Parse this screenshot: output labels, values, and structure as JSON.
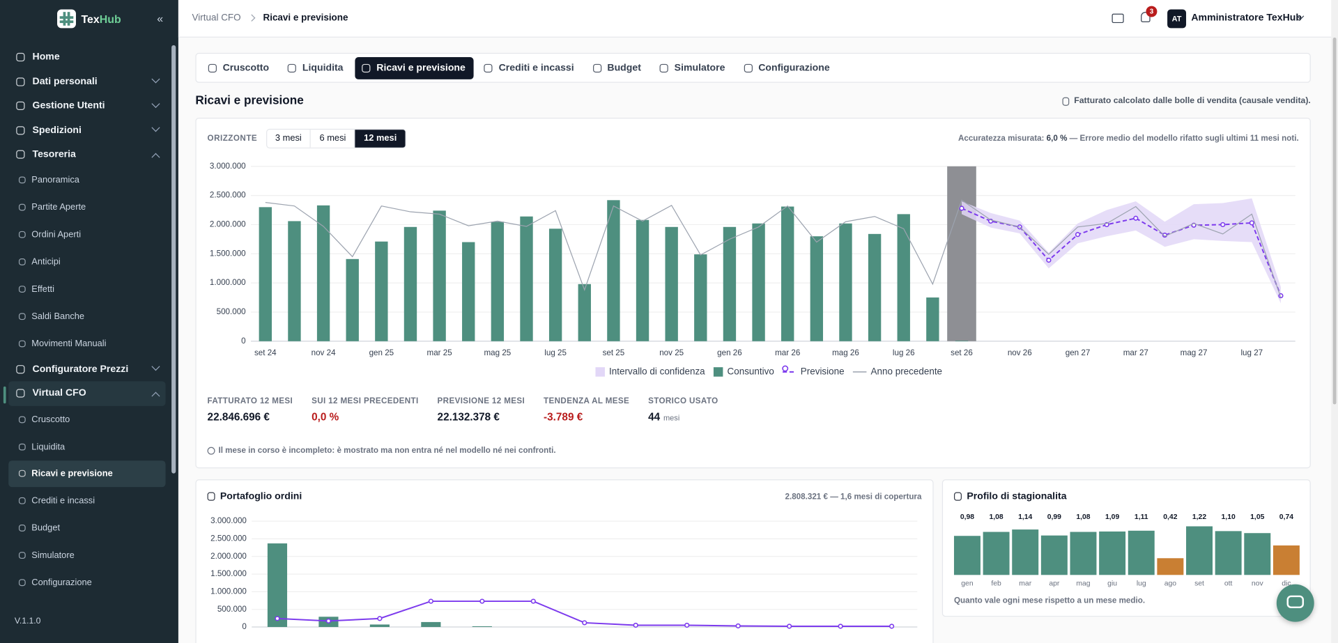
{
  "sidebar": {
    "brand": {
      "first": "Tex",
      "second": "Hub"
    },
    "items": [
      {
        "label": "Home"
      },
      {
        "label": "Dati personali",
        "collapsed": true
      },
      {
        "label": "Gestione Utenti",
        "collapsed": true
      },
      {
        "label": "Spedizioni",
        "collapsed": true
      },
      {
        "label": "Tesoreria",
        "children": [
          {
            "label": "Panoramica"
          },
          {
            "label": "Partite Aperte"
          },
          {
            "label": "Ordini Aperti"
          },
          {
            "label": "Anticipi"
          },
          {
            "label": "Effetti"
          },
          {
            "label": "Saldi Banche"
          },
          {
            "label": "Movimenti Manuali"
          }
        ]
      },
      {
        "label": "Configuratore Prezzi",
        "collapsed": true
      },
      {
        "label": "Virtual CFO",
        "active": true,
        "children": [
          {
            "label": "Cruscotto"
          },
          {
            "label": "Liquidita"
          },
          {
            "label": "Ricavi e previsione",
            "active": true
          },
          {
            "label": "Crediti e incassi"
          },
          {
            "label": "Budget"
          },
          {
            "label": "Simulatore"
          },
          {
            "label": "Configurazione"
          }
        ]
      }
    ],
    "version": "V.1.1.0"
  },
  "header": {
    "breadcrumb": [
      "Virtual CFO",
      "Ricavi e previsione"
    ],
    "notifications": 3,
    "avatar": "AT",
    "user": "Amministratore TexHub"
  },
  "tabs": [
    {
      "label": "Cruscotto"
    },
    {
      "label": "Liquidita"
    },
    {
      "label": "Ricavi e previsione",
      "active": true
    },
    {
      "label": "Crediti e incassi"
    },
    {
      "label": "Budget"
    },
    {
      "label": "Simulatore"
    },
    {
      "label": "Configurazione"
    }
  ],
  "section": {
    "title": "Ricavi e previsione",
    "note": "Fatturato calcolato dalle bolle di vendita (causale vendita)."
  },
  "horizon": {
    "label": "ORIZZONTE",
    "options": [
      {
        "label": "3 mesi"
      },
      {
        "label": "6 mesi"
      },
      {
        "label": "12 mesi",
        "active": true
      }
    ]
  },
  "accuracy": {
    "prefix": "Accuratezza misurata:",
    "value": "6,0 %",
    "suffix": "— Errore medio del modello rifatto sugli ultimi 11 mesi noti."
  },
  "kpis": [
    {
      "label": "FATTURATO 12 MESI",
      "value": "22.846.696 €"
    },
    {
      "label": "SUI 12 MESI PRECEDENTI",
      "value": "0,0 %",
      "tone": "negative"
    },
    {
      "label": "PREVISIONE 12 MESI",
      "value": "22.132.378 €"
    },
    {
      "label": "TENDENZA AL MESE",
      "value": "-3.789 €",
      "tone": "negative"
    },
    {
      "label": "STORICO USATO",
      "value": "44",
      "unit": "mesi"
    }
  ],
  "footnote": "Il mese in corso è incompleto: è mostrato ma non entra né nel modello né nei confronti.",
  "portfolio": {
    "title": "Portafoglio ordini",
    "note": "2.808.321 € — 1,6 mesi di copertura"
  },
  "seasonality": {
    "title": "Profilo di stagionalita",
    "note": "Quanto vale ogni mese rispetto a un mese medio."
  },
  "chart_data": [
    {
      "type": "bar",
      "categories": [
        "set 24",
        null,
        "nov 24",
        null,
        "gen 25",
        null,
        "mar 25",
        null,
        "mag 25",
        null,
        "lug 25",
        null,
        "set 25",
        null,
        "nov 25",
        null,
        "gen 26",
        null,
        "mar 26",
        null,
        "mag 26",
        null,
        "lug 26",
        null,
        "set 26",
        null,
        "nov 26",
        null,
        "gen 27",
        null,
        "mar 27",
        null,
        "mag 27",
        null,
        "lug 27",
        null
      ],
      "series": [
        {
          "name": "Intervallo di confidenza",
          "type": "band",
          "color": "#e2d7f7",
          "lower": [
            null,
            null,
            null,
            null,
            null,
            null,
            null,
            null,
            null,
            null,
            null,
            null,
            null,
            null,
            null,
            null,
            null,
            null,
            null,
            null,
            null,
            null,
            null,
            null,
            2180000,
            1950000,
            1850000,
            1250000,
            1680000,
            1800000,
            1900000,
            1620000,
            1750000,
            1720000,
            1700000,
            650000
          ],
          "upper": [
            null,
            null,
            null,
            null,
            null,
            null,
            null,
            null,
            null,
            null,
            null,
            null,
            null,
            null,
            null,
            null,
            null,
            null,
            null,
            null,
            null,
            null,
            null,
            null,
            2400000,
            2200000,
            2070000,
            1520000,
            2020000,
            2250000,
            2400000,
            2050000,
            2350000,
            2370000,
            2450000,
            930000
          ]
        },
        {
          "name": "Consuntivo",
          "type": "bar",
          "color": "#4e8f7f",
          "values": [
            2300000,
            2060000,
            2330000,
            1410000,
            1710000,
            1960000,
            2240000,
            1700000,
            2050000,
            2140000,
            1930000,
            980000,
            2420000,
            2080000,
            1960000,
            1490000,
            1960000,
            2020000,
            2310000,
            1800000,
            2020000,
            1840000,
            2180000,
            750000,
            10000,
            null,
            null,
            null,
            null,
            null,
            null,
            null,
            null,
            null,
            null,
            null
          ]
        },
        {
          "name": "Previsione",
          "type": "line",
          "color": "#7c3aed",
          "dashed": true,
          "markers": true,
          "values": [
            null,
            null,
            null,
            null,
            null,
            null,
            null,
            null,
            null,
            null,
            null,
            null,
            null,
            null,
            null,
            null,
            null,
            null,
            null,
            null,
            null,
            null,
            null,
            null,
            2280000,
            2060000,
            1960000,
            1390000,
            1830000,
            2000000,
            2110000,
            1820000,
            1990000,
            2000000,
            2030000,
            780000
          ]
        },
        {
          "name": "Anno precedente",
          "type": "line",
          "color": "#9ca3af",
          "values": [
            2380000,
            2320000,
            1970000,
            1450000,
            2320000,
            2220000,
            2180000,
            1980000,
            2060000,
            1970000,
            2240000,
            880000,
            2320000,
            2060000,
            2330000,
            1480000,
            1750000,
            1960000,
            2320000,
            1700000,
            2050000,
            2140000,
            1930000,
            980000,
            2420000,
            2080000,
            1960000,
            1490000,
            1960000,
            2020000,
            2310000,
            1800000,
            2020000,
            1840000,
            2180000,
            750000
          ]
        }
      ],
      "ylim": [
        0,
        3000000
      ],
      "yticks": [
        0,
        {
          "value": 500000,
          "label": "500.000"
        },
        {
          "value": 1000000,
          "label": "1.000.000"
        },
        {
          "value": 1500000,
          "label": "1.500.000"
        },
        {
          "value": 2000000,
          "label": "2.000.000"
        },
        {
          "value": 2500000,
          "label": "2.500.000"
        },
        {
          "value": 3000000,
          "label": "3.000.000"
        }
      ],
      "grid": true,
      "legend": "bottom"
    },
    {
      "type": "bar",
      "series": [
        {
          "type": "bar",
          "color": "#4e8f7f",
          "values": [
            2370000,
            290000,
            70000,
            140000,
            20000,
            null,
            null,
            null,
            null,
            null,
            null,
            null,
            null
          ]
        },
        {
          "type": "line",
          "color": "#7c3aed",
          "markers": true,
          "values": [
            240000,
            170000,
            240000,
            730000,
            730000,
            730000,
            120000,
            50000,
            50000,
            30000,
            20000,
            20000,
            20000
          ]
        }
      ],
      "ylim": [
        0,
        3000000
      ],
      "yticks": [
        0,
        {
          "value": 500000,
          "label": "500.000"
        },
        {
          "value": 1000000,
          "label": "1.000.000"
        },
        {
          "value": 1500000,
          "label": "1.500.000"
        },
        {
          "value": 2000000,
          "label": "2.000.000"
        },
        {
          "value": 2500000,
          "label": "2.500.000"
        },
        {
          "value": 3000000,
          "label": "3.000.000"
        }
      ],
      "grid": true
    },
    {
      "type": "bar",
      "categories": [
        "gen",
        "feb",
        "mar",
        "apr",
        "mag",
        "giu",
        "lug",
        "ago",
        "set",
        "ott",
        "nov",
        "dic"
      ],
      "values": [
        0.98,
        1.08,
        1.14,
        0.99,
        1.08,
        1.09,
        1.11,
        0.42,
        1.22,
        1.1,
        1.05,
        0.74
      ],
      "value_labels": [
        "0,98",
        "1,08",
        "1,14",
        "0,99",
        "1,08",
        "1,09",
        "1,11",
        "0,42",
        "1,22",
        "1,10",
        "1,05",
        "0,74"
      ],
      "colors": [
        "#4e8f7f",
        "#4e8f7f",
        "#4e8f7f",
        "#4e8f7f",
        "#4e8f7f",
        "#4e8f7f",
        "#4e8f7f",
        "#c97f33",
        "#4e8f7f",
        "#4e8f7f",
        "#4e8f7f",
        "#c97f33"
      ]
    }
  ]
}
